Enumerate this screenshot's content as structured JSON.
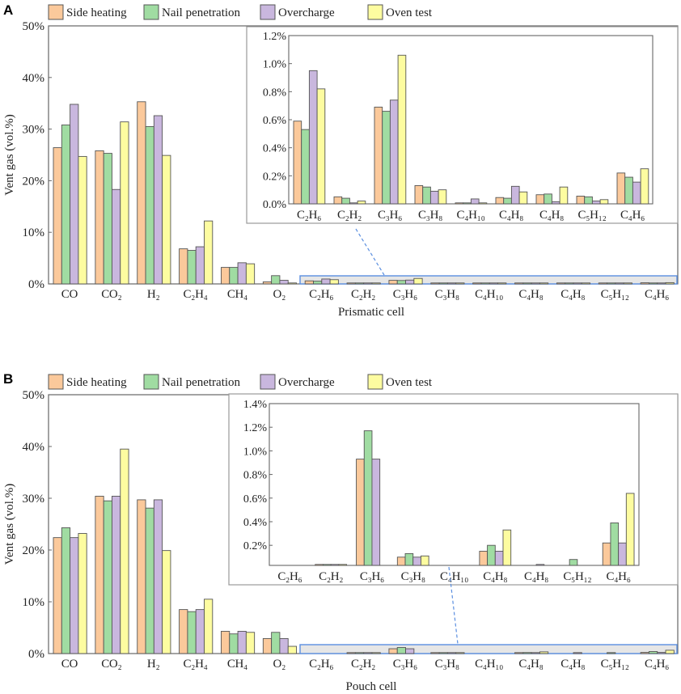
{
  "chart_data": [
    {
      "type": "bar",
      "panel_label": "A",
      "title": "",
      "xlabel": "Prismatic cell",
      "ylabel": "Vent gas (vol.%)",
      "ylim": [
        0,
        50
      ],
      "yticks": [
        "0%",
        "10%",
        "20%",
        "30%",
        "40%",
        "50%"
      ],
      "legend": [
        "Side heating",
        "Nail penetration",
        "Overcharge",
        "Oven test"
      ],
      "legend_placement": "top",
      "categories": [
        "CO",
        "CO₂",
        "H₂",
        "C₂H₄",
        "CH₄",
        "O₂",
        "C₂H₆",
        "C₂H₂",
        "C₃H₆",
        "C₃H₈",
        "C₄H₁₀",
        "C₄H₈",
        "C₄H₈",
        "C₅H₁₂",
        "C₄H₆"
      ],
      "series": [
        {
          "name": "Side heating",
          "values": [
            26.4,
            25.8,
            35.3,
            6.8,
            3.2,
            0.4,
            0.59,
            0.05,
            0.69,
            0.13,
            0.003,
            0.045,
            0.065,
            0.055,
            0.22
          ]
        },
        {
          "name": "Nail penetration",
          "values": [
            30.8,
            25.3,
            30.5,
            6.5,
            3.2,
            1.6,
            0.53,
            0.04,
            0.66,
            0.12,
            0.003,
            0.04,
            0.07,
            0.05,
            0.19
          ]
        },
        {
          "name": "Overcharge",
          "values": [
            34.8,
            18.3,
            32.6,
            7.2,
            4.1,
            0.7,
            0.95,
            0.003,
            0.74,
            0.09,
            0.035,
            0.125,
            0.015,
            0.02,
            0.155
          ]
        },
        {
          "name": "Oven test",
          "values": [
            24.7,
            31.4,
            24.9,
            12.2,
            3.9,
            0.1,
            0.82,
            0.02,
            1.06,
            0.1,
            0.003,
            0.085,
            0.12,
            0.03,
            0.25
          ]
        }
      ],
      "inset": {
        "ylim": [
          0,
          1.2
        ],
        "yticks": [
          "0.0%",
          "0.2%",
          "0.4%",
          "0.6%",
          "0.8%",
          "1.0%",
          "1.2%"
        ],
        "ytick_values": [
          0,
          0.2,
          0.4,
          0.6,
          0.8,
          1.0,
          1.2
        ],
        "category_start": 6
      }
    },
    {
      "type": "bar",
      "panel_label": "B",
      "title": "",
      "xlabel": "Pouch cell",
      "ylabel": "Vent gas (vol.%)",
      "ylim": [
        0,
        50
      ],
      "yticks": [
        "0%",
        "10%",
        "20%",
        "30%",
        "40%",
        "50%"
      ],
      "legend": [
        "Side heating",
        "Nail penetration",
        "Overcharge",
        "Oven test"
      ],
      "legend_placement": "top",
      "categories": [
        "CO",
        "CO₂",
        "H₂",
        "C₂H₄",
        "CH₄",
        "O₂",
        "C₂H₆",
        "C₂H₂",
        "C₃H₆",
        "C₃H₈",
        "C₄H₁₀",
        "C₄H₈",
        "C₄H₈",
        "C₅H₁₂",
        "C₄H₆"
      ],
      "series": [
        {
          "name": "Side heating",
          "values": [
            22.4,
            30.4,
            29.7,
            8.5,
            4.3,
            2.9,
            0,
            0.035,
            0.93,
            0.1,
            0,
            0.15,
            0,
            0,
            0.22
          ]
        },
        {
          "name": "Nail penetration",
          "values": [
            24.3,
            29.5,
            28.1,
            8.1,
            3.8,
            4.1,
            0,
            0.037,
            1.17,
            0.13,
            0,
            0.2,
            0,
            0.08,
            0.39
          ]
        },
        {
          "name": "Overcharge",
          "values": [
            22.4,
            30.4,
            29.7,
            8.5,
            4.3,
            2.9,
            0,
            0.035,
            0.93,
            0.1,
            0,
            0.15,
            0.035,
            0,
            0.22
          ]
        },
        {
          "name": "Oven test",
          "values": [
            23.2,
            39.5,
            19.9,
            10.5,
            4.1,
            1.4,
            0,
            0.035,
            0,
            0.11,
            0,
            0.33,
            0,
            0,
            0.64
          ]
        }
      ],
      "inset": {
        "ylim": [
          0.03,
          1.4
        ],
        "yticks": [
          "0.2%",
          "0.4%",
          "0.6%",
          "0.8%",
          "1.0%",
          "1.2%",
          "1.4%"
        ],
        "ytick_values": [
          0.2,
          0.4,
          0.6,
          0.8,
          1.0,
          1.2,
          1.4
        ],
        "category_start": 6
      }
    }
  ],
  "colors": {
    "series": [
      "#fbc99b",
      "#a0dca2",
      "#c9b7de",
      "#fdfca0"
    ],
    "highlight": "#5b8fe0",
    "highlight_fill": "#e6e6e6"
  }
}
